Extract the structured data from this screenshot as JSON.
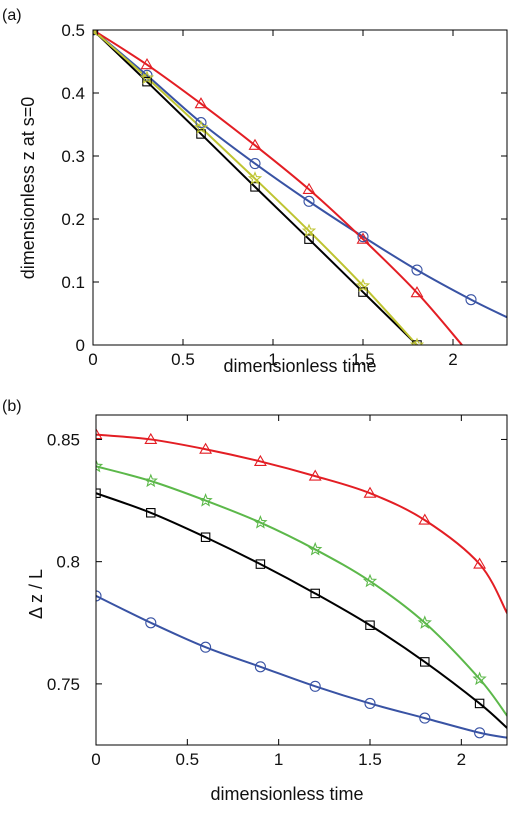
{
  "chart_data": [
    {
      "type": "line",
      "panel_label": "(a)",
      "xlabel": "dimensionless time",
      "ylabel": "dimensionless z at s=0",
      "xlim": [
        0,
        2.3
      ],
      "ylim": [
        0,
        0.5
      ],
      "xticks": [
        0,
        0.5,
        1,
        1.5,
        2
      ],
      "xtick_labels": [
        "0",
        "0.5",
        "1",
        "1.5",
        "2"
      ],
      "yticks": [
        0,
        0.1,
        0.2,
        0.3,
        0.4,
        0.5
      ],
      "ytick_labels": [
        "0",
        "0.1",
        "0.2",
        "0.3",
        "0.4",
        "0.5"
      ],
      "grid": false,
      "series": [
        {
          "color": "#3953a4",
          "marker": "circle",
          "x": [
            0,
            0.3,
            0.6,
            0.9,
            1.2,
            1.5,
            1.8,
            2.1,
            2.3
          ],
          "y": [
            0.5,
            0.428,
            0.353,
            0.288,
            0.228,
            0.172,
            0.119,
            0.072,
            0.044
          ],
          "marker_x": [
            0,
            0.3,
            0.6,
            0.9,
            1.2,
            1.5,
            1.8,
            2.1
          ]
        },
        {
          "color": "#e31e24",
          "marker": "triangle",
          "x": [
            0,
            0.3,
            0.6,
            0.9,
            1.2,
            1.5,
            1.8,
            2.05
          ],
          "y": [
            0.5,
            0.445,
            0.383,
            0.317,
            0.247,
            0.168,
            0.083,
            0.0
          ],
          "marker_x": [
            0,
            0.3,
            0.6,
            0.9,
            1.2,
            1.5,
            1.8
          ]
        },
        {
          "color": "#000000",
          "marker": "square",
          "x": [
            0,
            0.3,
            0.6,
            0.9,
            1.2,
            1.5,
            1.8
          ],
          "y": [
            0.5,
            0.418,
            0.335,
            0.251,
            0.168,
            0.084,
            0.0
          ],
          "marker_x": [
            0,
            0.3,
            0.6,
            0.9,
            1.2,
            1.5,
            1.8
          ]
        },
        {
          "color": "#bfc431",
          "marker": "star",
          "x": [
            0,
            0.3,
            0.6,
            0.9,
            1.2,
            1.5,
            1.8
          ],
          "y": [
            0.5,
            0.424,
            0.345,
            0.264,
            0.181,
            0.094,
            0.0
          ],
          "marker_x": [
            0,
            0.3,
            0.6,
            0.9,
            1.2,
            1.5,
            1.8
          ]
        }
      ]
    },
    {
      "type": "line",
      "panel_label": "(b)",
      "xlabel": "dimensionless time",
      "ylabel": "Δ z / L",
      "xlim": [
        0,
        2.25
      ],
      "ylim": [
        0.725,
        0.86
      ],
      "xticks": [
        0,
        0.5,
        1,
        1.5,
        2
      ],
      "xtick_labels": [
        "0",
        "0.5",
        "1",
        "1.5",
        "2"
      ],
      "yticks": [
        0.75,
        0.8,
        0.85
      ],
      "ytick_labels": [
        "0.75",
        "0.8",
        "0.85"
      ],
      "grid": false,
      "series": [
        {
          "color": "#e31e24",
          "marker": "triangle",
          "x": [
            0,
            0.3,
            0.6,
            0.9,
            1.2,
            1.5,
            1.8,
            2.1,
            2.25
          ],
          "y": [
            0.852,
            0.85,
            0.846,
            0.841,
            0.835,
            0.828,
            0.817,
            0.799,
            0.779
          ],
          "marker_x": [
            0,
            0.3,
            0.6,
            0.9,
            1.2,
            1.5,
            1.8,
            2.1
          ]
        },
        {
          "color": "#5cb84a",
          "marker": "star",
          "x": [
            0,
            0.3,
            0.6,
            0.9,
            1.2,
            1.5,
            1.8,
            2.1,
            2.25
          ],
          "y": [
            0.839,
            0.833,
            0.825,
            0.816,
            0.805,
            0.792,
            0.775,
            0.752,
            0.737
          ],
          "marker_x": [
            0,
            0.3,
            0.6,
            0.9,
            1.2,
            1.5,
            1.8,
            2.1
          ]
        },
        {
          "color": "#000000",
          "marker": "square",
          "x": [
            0,
            0.3,
            0.6,
            0.9,
            1.2,
            1.5,
            1.8,
            2.1,
            2.25
          ],
          "y": [
            0.828,
            0.82,
            0.81,
            0.799,
            0.787,
            0.774,
            0.759,
            0.742,
            0.732
          ],
          "marker_x": [
            0,
            0.3,
            0.6,
            0.9,
            1.2,
            1.5,
            1.8,
            2.1
          ]
        },
        {
          "color": "#3953a4",
          "marker": "circle",
          "x": [
            0,
            0.3,
            0.6,
            0.9,
            1.2,
            1.5,
            1.8,
            2.1,
            2.25
          ],
          "y": [
            0.786,
            0.775,
            0.765,
            0.757,
            0.749,
            0.742,
            0.736,
            0.73,
            0.728
          ],
          "marker_x": [
            0,
            0.3,
            0.6,
            0.9,
            1.2,
            1.5,
            1.8,
            2.1
          ]
        }
      ]
    }
  ]
}
